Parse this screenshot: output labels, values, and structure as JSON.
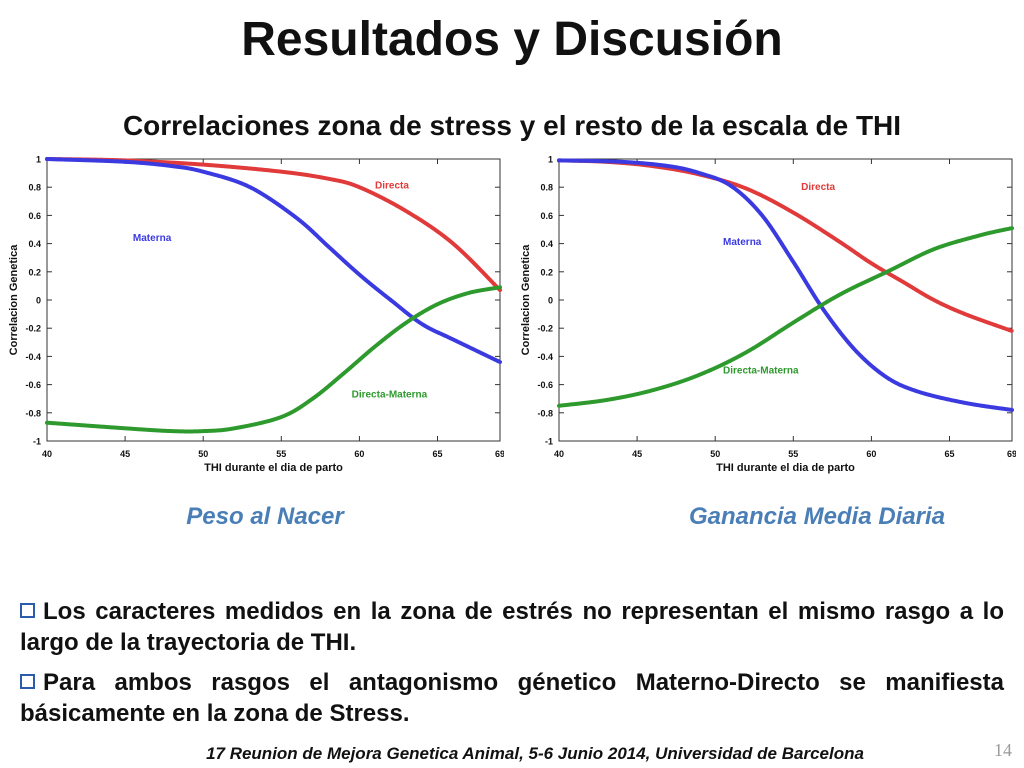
{
  "title": "Resultados y Discusión",
  "subtitle": "Correlaciones zona de stress y el resto de la escala de THI",
  "colors": {
    "directa": "#e03a3a",
    "materna": "#3a3ae0",
    "directa_materna": "#2e9a2e",
    "caption": "#4a7eb7"
  },
  "chart_data": [
    {
      "type": "line",
      "caption": "Peso al Nacer",
      "xlabel": "THI durante el dia de parto",
      "ylabel": "Correlacion Genetica",
      "xlim": [
        40,
        69
      ],
      "ylim": [
        -1,
        1
      ],
      "xticks": [
        40,
        45,
        50,
        55,
        60,
        65,
        69
      ],
      "yticks": [
        1,
        0.8,
        0.6,
        0.4,
        0.2,
        0,
        -0.2,
        -0.4,
        -0.6,
        -0.8,
        -1
      ],
      "grid": false,
      "series": [
        {
          "name": "Directa",
          "color": "#e03a3a",
          "x": [
            40,
            45,
            50,
            55,
            58,
            60,
            63,
            66,
            69
          ],
          "y": [
            1.0,
            0.99,
            0.96,
            0.91,
            0.86,
            0.8,
            0.63,
            0.4,
            0.07
          ]
        },
        {
          "name": "Materna",
          "color": "#3a3ae0",
          "x": [
            40,
            45,
            48,
            50,
            53,
            56,
            58,
            60,
            62,
            64,
            66,
            69
          ],
          "y": [
            1.0,
            0.98,
            0.95,
            0.91,
            0.8,
            0.58,
            0.38,
            0.18,
            0.0,
            -0.17,
            -0.28,
            -0.44
          ]
        },
        {
          "name": "Directa-Materna",
          "color": "#2e9a2e",
          "x": [
            40,
            45,
            48,
            50,
            52,
            55,
            57,
            59,
            61,
            63,
            65,
            67,
            69
          ],
          "y": [
            -0.87,
            -0.91,
            -0.93,
            -0.93,
            -0.91,
            -0.83,
            -0.7,
            -0.52,
            -0.33,
            -0.16,
            -0.03,
            0.05,
            0.09
          ]
        }
      ],
      "labels": [
        {
          "series": "Directa",
          "text": "Directa",
          "x": 61,
          "y": 0.79
        },
        {
          "series": "Materna",
          "text": "Materna",
          "x": 45.5,
          "y": 0.42
        },
        {
          "series": "Directa-Materna",
          "text": "Directa-Materna",
          "x": 59.5,
          "y": -0.69
        }
      ]
    },
    {
      "type": "line",
      "caption": "Ganancia Media Diaria",
      "xlabel": "THI durante el dia de parto",
      "ylabel": "Correlacion Genetica",
      "xlim": [
        40,
        69
      ],
      "ylim": [
        -1,
        1
      ],
      "xticks": [
        40,
        45,
        50,
        55,
        60,
        65,
        69
      ],
      "yticks": [
        1,
        0.8,
        0.6,
        0.4,
        0.2,
        0,
        -0.2,
        -0.4,
        -0.6,
        -0.8,
        -1
      ],
      "grid": false,
      "series": [
        {
          "name": "Directa",
          "color": "#e03a3a",
          "x": [
            40,
            43,
            46,
            49,
            52,
            55,
            58,
            60,
            62,
            64,
            66,
            69
          ],
          "y": [
            0.99,
            0.98,
            0.95,
            0.89,
            0.79,
            0.62,
            0.41,
            0.26,
            0.13,
            0.0,
            -0.1,
            -0.22
          ]
        },
        {
          "name": "Materna",
          "color": "#3a3ae0",
          "x": [
            40,
            44,
            47,
            49,
            51,
            53,
            55,
            57,
            59,
            61,
            63,
            66,
            69
          ],
          "y": [
            0.99,
            0.98,
            0.95,
            0.9,
            0.81,
            0.6,
            0.27,
            -0.08,
            -0.36,
            -0.55,
            -0.65,
            -0.73,
            -0.78
          ]
        },
        {
          "name": "Directa-Materna",
          "color": "#2e9a2e",
          "x": [
            40,
            43,
            46,
            49,
            52,
            55,
            58,
            61,
            64,
            67,
            69
          ],
          "y": [
            -0.75,
            -0.71,
            -0.64,
            -0.53,
            -0.37,
            -0.16,
            0.04,
            0.2,
            0.36,
            0.46,
            0.51
          ]
        }
      ],
      "labels": [
        {
          "series": "Directa",
          "text": "Directa",
          "x": 55.5,
          "y": 0.78
        },
        {
          "series": "Materna",
          "text": "Materna",
          "x": 50.5,
          "y": 0.39
        },
        {
          "series": "Directa-Materna",
          "text": "Directa-Materna",
          "x": 50.5,
          "y": -0.52
        }
      ]
    }
  ],
  "bullets": [
    "Los caracteres medidos en la zona de estrés no representan el mismo rasgo a lo largo de la trayectoria de THI.",
    "Para ambos rasgos el antagonismo génetico Materno-Directo se manifiesta básicamente en la zona de Stress."
  ],
  "footer": "17 Reunion de Mejora Genetica Animal, 5-6 Junio 2014, Universidad de Barcelona",
  "page_number": "14"
}
